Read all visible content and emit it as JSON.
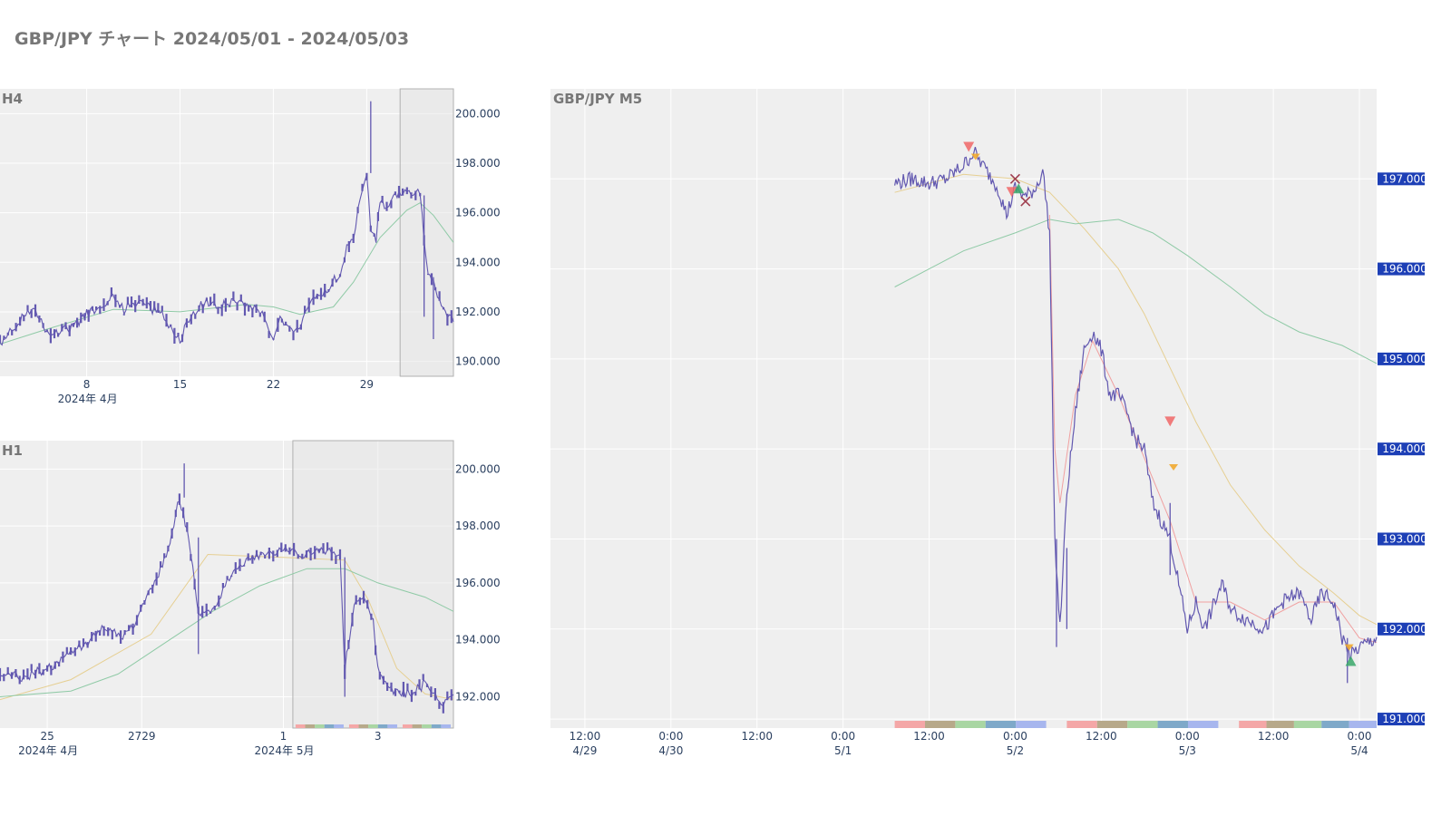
{
  "page": {
    "title": "GBP/JPY チャート 2024/05/01 - 2024/05/03"
  },
  "colors": {
    "plot_bg": "#efefef",
    "grid": "#ffffff",
    "candle": "#6258b0",
    "ma_short": "#f0a0a0",
    "ma_mid": "#e6cf92",
    "ma_long": "#8fcaa6",
    "axis_text": "#2a3f5f",
    "badge": "#1d3fb6",
    "highlight_border": "#b0b0b0",
    "sell_marker": "#f06666",
    "buy_marker": "#3aa86a",
    "close_marker": "#a04050",
    "take_marker": "#f0a830",
    "session_colors": [
      "#f4a7a7",
      "#b7a98a",
      "#a9d6a3",
      "#7fa9c9",
      "#a7b6ee"
    ]
  },
  "chart_data": [
    {
      "type": "candlestick",
      "panel": "H4",
      "label": "H4",
      "x_range": [
        1.5,
        35.5
      ],
      "ylim": [
        189.4,
        201.0
      ],
      "x_ticks": [
        {
          "at": 8,
          "label": "8",
          "sub": "2024年 4月"
        },
        {
          "at": 15,
          "label": "15"
        },
        {
          "at": 22,
          "label": "22"
        },
        {
          "at": 29,
          "label": "29"
        }
      ],
      "y_ticks": [
        190,
        192,
        194,
        196,
        198,
        200
      ],
      "y_tick_labels": [
        "190.000",
        "192.000",
        "194.000",
        "196.000",
        "198.000",
        "200.000"
      ],
      "highlight": [
        31.5,
        35.5
      ],
      "path": [
        [
          1.5,
          190.6
        ],
        [
          3,
          191.7
        ],
        [
          4,
          192.2
        ],
        [
          4.6,
          191.6
        ],
        [
          5.3,
          190.9
        ],
        [
          6,
          191.2
        ],
        [
          7,
          191.4
        ],
        [
          8,
          191.9
        ],
        [
          9,
          192.3
        ],
        [
          10,
          192.6
        ],
        [
          10.8,
          192.1
        ],
        [
          11.5,
          192.4
        ],
        [
          12.5,
          192.2
        ],
        [
          13.5,
          192.0
        ],
        [
          14.3,
          191.4
        ],
        [
          15,
          190.7
        ],
        [
          15.5,
          191.6
        ],
        [
          16,
          192.0
        ],
        [
          17,
          192.4
        ],
        [
          18,
          192.2
        ],
        [
          19,
          192.5
        ],
        [
          20,
          192.3
        ],
        [
          21,
          192.1
        ],
        [
          21.5,
          191.4
        ],
        [
          22,
          191.0
        ],
        [
          22.5,
          191.8
        ],
        [
          23.5,
          191.2
        ],
        [
          24.5,
          191.9
        ],
        [
          25,
          192.6
        ],
        [
          26,
          192.9
        ],
        [
          27,
          193.6
        ],
        [
          27.5,
          194.6
        ],
        [
          28,
          195.0
        ],
        [
          28.5,
          196.6
        ],
        [
          29,
          197.6
        ],
        [
          29.3,
          195.4
        ],
        [
          29.7,
          194.9
        ],
        [
          30,
          196.5
        ],
        [
          30.5,
          196.0
        ],
        [
          31,
          196.6
        ],
        [
          31.7,
          196.8
        ],
        [
          32.5,
          196.9
        ],
        [
          33,
          196.7
        ],
        [
          33.3,
          195.0
        ],
        [
          33.6,
          193.4
        ],
        [
          34,
          193.1
        ],
        [
          34.3,
          192.4
        ],
        [
          35.5,
          191.7
        ]
      ],
      "spikes": [
        [
          29.3,
          200.5
        ],
        [
          33.3,
          191.8
        ],
        [
          34,
          190.9
        ]
      ],
      "ma": [
        {
          "name": "ma_long",
          "points": [
            [
              1.5,
              190.7
            ],
            [
              5,
              191.3
            ],
            [
              10,
              192.1
            ],
            [
              15,
              192.0
            ],
            [
              20,
              192.3
            ],
            [
              22,
              192.2
            ],
            [
              24,
              191.9
            ],
            [
              26.5,
              192.2
            ],
            [
              28,
              193.2
            ],
            [
              30,
              195.0
            ],
            [
              32,
              196.1
            ],
            [
              33,
              196.4
            ],
            [
              34,
              195.9
            ],
            [
              35.5,
              194.8
            ]
          ]
        }
      ]
    },
    {
      "type": "candlestick",
      "panel": "H1",
      "label": "H1",
      "x_range": [
        24.0,
        4.6
      ],
      "ylim": [
        190.9,
        201.0
      ],
      "x_ticks": [
        {
          "at": 25,
          "label": "25",
          "sub": "2024年 4月"
        },
        {
          "at": 27,
          "label": "2729"
        },
        {
          "at": 30,
          "label": "1",
          "sub": "2024年 5月"
        },
        {
          "at": 32,
          "label": "3"
        }
      ],
      "y_ticks": [
        192,
        194,
        196,
        198,
        200
      ],
      "y_tick_labels": [
        "192.000",
        "194.000",
        "196.000",
        "198.000",
        "200.000"
      ],
      "highlight": [
        30.2,
        33.6
      ],
      "path": [
        [
          24.0,
          192.9
        ],
        [
          24.5,
          192.7
        ],
        [
          25.0,
          193.0
        ],
        [
          25.5,
          193.5
        ],
        [
          25.9,
          194.0
        ],
        [
          26.2,
          194.4
        ],
        [
          26.6,
          194.2
        ],
        [
          26.9,
          194.6
        ],
        [
          27.1,
          195.5
        ],
        [
          27.4,
          196.5
        ],
        [
          27.6,
          197.3
        ],
        [
          27.8,
          199.0
        ],
        [
          28.0,
          197.6
        ],
        [
          28.2,
          194.8
        ],
        [
          28.5,
          195.0
        ],
        [
          28.9,
          196.3
        ],
        [
          29.3,
          196.9
        ],
        [
          29.7,
          197.1
        ],
        [
          30.0,
          197.2
        ],
        [
          30.4,
          197.0
        ],
        [
          30.8,
          197.2
        ],
        [
          31.2,
          196.9
        ],
        [
          31.3,
          193.0
        ],
        [
          31.5,
          195.3
        ],
        [
          31.7,
          195.4
        ],
        [
          31.9,
          194.7
        ],
        [
          32.0,
          193.0
        ],
        [
          32.2,
          192.3
        ],
        [
          32.5,
          192.1
        ],
        [
          32.8,
          192.2
        ],
        [
          33.0,
          192.5
        ],
        [
          33.3,
          191.8
        ],
        [
          33.6,
          191.9
        ]
      ],
      "spikes": [
        [
          27.9,
          200.2
        ],
        [
          28.2,
          193.5
        ],
        [
          31.3,
          192.0
        ]
      ],
      "ma": [
        {
          "name": "ma_mid",
          "points": [
            [
              24.0,
              191.9
            ],
            [
              25.5,
              192.6
            ],
            [
              27.2,
              194.2
            ],
            [
              28.4,
              197.0
            ],
            [
              30.0,
              196.9
            ],
            [
              31.3,
              196.8
            ],
            [
              31.8,
              195.4
            ],
            [
              32.4,
              193.0
            ],
            [
              33.0,
              192.1
            ],
            [
              33.6,
              191.9
            ]
          ]
        },
        {
          "name": "ma_long",
          "points": [
            [
              24.0,
              192.0
            ],
            [
              25.5,
              192.2
            ],
            [
              26.5,
              192.8
            ],
            [
              27.5,
              193.9
            ],
            [
              28.5,
              195.0
            ],
            [
              29.5,
              195.9
            ],
            [
              30.5,
              196.5
            ],
            [
              31.3,
              196.5
            ],
            [
              32.0,
              196.0
            ],
            [
              33.0,
              195.5
            ],
            [
              33.6,
              195.0
            ]
          ]
        }
      ]
    },
    {
      "type": "candlestick",
      "panel": "M5",
      "label": "GBP/JPY M5",
      "x_range": [
        -12,
        36
      ],
      "ylim": [
        190.9,
        198.0
      ],
      "x_ticks": [
        {
          "at": -10,
          "label": "12:00",
          "sub": "4/29"
        },
        {
          "at": -5,
          "label": "0:00",
          "sub": "4/30"
        },
        {
          "at": 0,
          "label": "12:00"
        },
        {
          "at": 5,
          "label": "0:00",
          "sub": "5/1"
        },
        {
          "at": 10,
          "label": "12:00"
        },
        {
          "at": 15,
          "label": "0:00",
          "sub": "5/2"
        },
        {
          "at": 20,
          "label": "12:00"
        },
        {
          "at": 25,
          "label": "0:00",
          "sub": "5/3"
        },
        {
          "at": 30,
          "label": "12:00"
        },
        {
          "at": 35,
          "label": "0:00",
          "sub": "5/4"
        }
      ],
      "y_ticks": [
        191,
        192,
        193,
        194,
        195,
        196,
        197
      ],
      "y_tick_labels": [
        "191.000",
        "192.000",
        "193.000",
        "194.000",
        "195.000",
        "196.000",
        "197.000"
      ],
      "path": [
        [
          8.0,
          196.95
        ],
        [
          9.0,
          197.0
        ],
        [
          10.0,
          196.95
        ],
        [
          11.0,
          197.0
        ],
        [
          12.0,
          197.15
        ],
        [
          12.6,
          197.3
        ],
        [
          13.3,
          197.1
        ],
        [
          14.0,
          196.9
        ],
        [
          14.5,
          196.6
        ],
        [
          15.0,
          196.9
        ],
        [
          15.6,
          196.8
        ],
        [
          16.2,
          196.9
        ],
        [
          16.6,
          197.1
        ],
        [
          17.0,
          196.4
        ],
        [
          17.3,
          193.0
        ],
        [
          17.6,
          192.0
        ],
        [
          18.0,
          193.5
        ],
        [
          18.5,
          194.4
        ],
        [
          19.0,
          195.1
        ],
        [
          19.5,
          195.3
        ],
        [
          20.0,
          195.1
        ],
        [
          20.5,
          194.6
        ],
        [
          21.0,
          194.6
        ],
        [
          21.5,
          194.4
        ],
        [
          22.0,
          194.1
        ],
        [
          22.5,
          194.0
        ],
        [
          23.0,
          193.4
        ],
        [
          24.0,
          193.0
        ],
        [
          24.5,
          192.5
        ],
        [
          25.0,
          192.0
        ],
        [
          25.5,
          192.3
        ],
        [
          26.0,
          192.0
        ],
        [
          27.0,
          192.5
        ],
        [
          27.6,
          192.2
        ],
        [
          28.5,
          192.1
        ],
        [
          29.5,
          192.0
        ],
        [
          30.5,
          192.3
        ],
        [
          31.5,
          192.4
        ],
        [
          32.2,
          192.1
        ],
        [
          32.8,
          192.4
        ],
        [
          33.5,
          192.3
        ],
        [
          34.0,
          191.9
        ],
        [
          34.5,
          191.7
        ],
        [
          35.0,
          191.8
        ],
        [
          36.0,
          191.9
        ]
      ],
      "spikes": [
        [
          17.4,
          191.8
        ],
        [
          18.0,
          192.9
        ],
        [
          24.0,
          192.6
        ],
        [
          34.3,
          191.4
        ]
      ],
      "ma": [
        {
          "name": "ma_mid",
          "points": [
            [
              8.0,
              196.85
            ],
            [
              12.0,
              197.05
            ],
            [
              15.0,
              197.0
            ],
            [
              17.0,
              196.85
            ],
            [
              19.0,
              196.45
            ],
            [
              21.0,
              196.0
            ],
            [
              22.5,
              195.5
            ],
            [
              24.0,
              194.9
            ],
            [
              25.5,
              194.3
            ],
            [
              27.5,
              193.6
            ],
            [
              29.5,
              193.1
            ],
            [
              31.5,
              192.7
            ],
            [
              33.5,
              192.4
            ],
            [
              35.0,
              192.15
            ],
            [
              36.0,
              192.05
            ]
          ]
        },
        {
          "name": "ma_long",
          "points": [
            [
              8.0,
              195.8
            ],
            [
              12.0,
              196.2
            ],
            [
              15.0,
              196.4
            ],
            [
              17.0,
              196.55
            ],
            [
              18.5,
              196.5
            ],
            [
              21.0,
              196.55
            ],
            [
              23.0,
              196.4
            ],
            [
              25.0,
              196.15
            ],
            [
              27.5,
              195.8
            ],
            [
              29.5,
              195.5
            ],
            [
              31.5,
              195.3
            ],
            [
              34.0,
              195.15
            ],
            [
              36.0,
              194.95
            ]
          ]
        },
        {
          "name": "ma_short",
          "points": [
            [
              17.0,
              196.6
            ],
            [
              17.3,
              194.0
            ],
            [
              17.6,
              193.4
            ],
            [
              18.5,
              194.6
            ],
            [
              19.5,
              195.2
            ],
            [
              21.0,
              194.6
            ],
            [
              22.5,
              193.9
            ],
            [
              24.0,
              193.2
            ],
            [
              25.5,
              192.3
            ],
            [
              27.5,
              192.3
            ],
            [
              29.5,
              192.1
            ],
            [
              31.5,
              192.3
            ],
            [
              33.5,
              192.3
            ],
            [
              35.0,
              191.9
            ],
            [
              36.0,
              191.85
            ]
          ]
        }
      ],
      "markers": [
        {
          "kind": "sell",
          "x": 12.3,
          "y": 197.35
        },
        {
          "kind": "take",
          "x": 12.7,
          "y": 197.25
        },
        {
          "kind": "close",
          "x": 15.0,
          "y": 197.0
        },
        {
          "kind": "sell",
          "x": 14.8,
          "y": 196.85
        },
        {
          "kind": "buy",
          "x": 15.2,
          "y": 196.9
        },
        {
          "kind": "close",
          "x": 15.6,
          "y": 196.75
        },
        {
          "kind": "sell",
          "x": 24.0,
          "y": 194.3
        },
        {
          "kind": "take",
          "x": 24.2,
          "y": 193.8
        },
        {
          "kind": "take",
          "x": 34.4,
          "y": 191.8
        },
        {
          "kind": "buy",
          "x": 34.5,
          "y": 191.65
        }
      ],
      "sessions": [
        {
          "start": 8.0,
          "end": 16.8
        },
        {
          "start": 18.0,
          "end": 26.8
        },
        {
          "start": 28.0,
          "end": 36.0
        }
      ]
    }
  ]
}
